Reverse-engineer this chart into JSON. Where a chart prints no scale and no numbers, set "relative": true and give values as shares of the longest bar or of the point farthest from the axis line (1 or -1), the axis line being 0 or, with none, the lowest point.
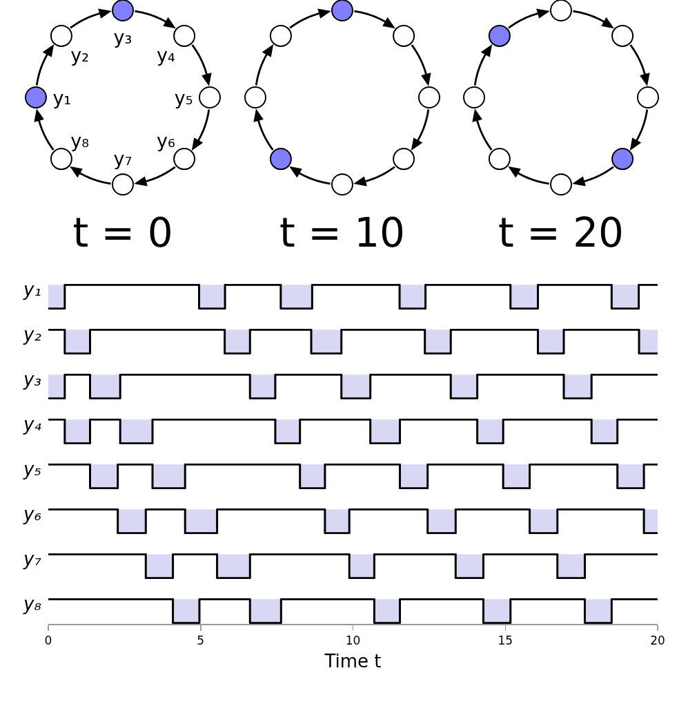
{
  "chart_data": [
    {
      "type": "other",
      "title": "t = 0",
      "categories": [
        "y₁",
        "y₂",
        "y₃",
        "y₄",
        "y₅",
        "y₆",
        "y₇",
        "y₈"
      ],
      "colors": [
        "#8080ff",
        "#ffffff",
        "#8080ff",
        "#ffffff",
        "#ffffff",
        "#ffffff",
        "#ffffff",
        "#ffffff"
      ]
    },
    {
      "type": "other",
      "title": "t = 10",
      "categories": [
        null,
        null,
        null,
        null,
        null,
        null,
        null,
        null
      ],
      "colors": [
        "#ffffff",
        "#ffffff",
        "#8080ff",
        "#ffffff",
        "#ffffff",
        "#ffffff",
        "#ffffff",
        "#8080ff"
      ]
    },
    {
      "type": "other",
      "title": "t = 20",
      "categories": [
        null,
        null,
        null,
        null,
        null,
        null,
        null,
        null
      ],
      "colors": [
        "#ffffff",
        "#8080ff",
        "#ffffff",
        "#ffffff",
        "#ffffff",
        "#8080ff",
        "#ffffff",
        "#ffffff"
      ]
    },
    {
      "type": "step",
      "ylabel": "y₁",
      "relative": true,
      "color": "#000000",
      "xlim": [
        0,
        20
      ],
      "tick_labels": false,
      "x": [
        0,
        0.54,
        4.95,
        5.8,
        7.63,
        8.66,
        11.53,
        12.38,
        15.17,
        16.07,
        18.49,
        19.38,
        20
      ],
      "values": [
        0,
        1,
        0,
        1,
        0,
        1,
        0,
        1,
        0,
        1,
        0,
        1,
        1
      ],
      "bands": [
        {
          "axis": "x",
          "from": 0,
          "to": 0.54,
          "color": "#d8d8f5"
        },
        {
          "axis": "x",
          "from": 4.95,
          "to": 5.8,
          "color": "#d8d8f5"
        },
        {
          "axis": "x",
          "from": 7.63,
          "to": 8.66,
          "color": "#d8d8f5"
        },
        {
          "axis": "x",
          "from": 11.53,
          "to": 12.38,
          "color": "#d8d8f5"
        },
        {
          "axis": "x",
          "from": 15.17,
          "to": 16.07,
          "color": "#d8d8f5"
        },
        {
          "axis": "x",
          "from": 18.49,
          "to": 19.38,
          "color": "#d8d8f5"
        }
      ]
    },
    {
      "type": "step",
      "ylabel": "y₂",
      "relative": true,
      "color": "#000000",
      "xlim": [
        0,
        20
      ],
      "tick_labels": false,
      "x": [
        0,
        0.54,
        1.37,
        5.79,
        6.62,
        8.63,
        9.62,
        12.36,
        13.21,
        16.07,
        16.92,
        19.39,
        20
      ],
      "values": [
        1,
        0,
        1,
        0,
        1,
        0,
        1,
        0,
        1,
        0,
        1,
        0,
        0
      ],
      "bands": [
        {
          "axis": "x",
          "from": 0.54,
          "to": 1.37,
          "color": "#d8d8f5"
        },
        {
          "axis": "x",
          "from": 5.79,
          "to": 6.62,
          "color": "#d8d8f5"
        },
        {
          "axis": "x",
          "from": 8.63,
          "to": 9.62,
          "color": "#d8d8f5"
        },
        {
          "axis": "x",
          "from": 12.36,
          "to": 13.21,
          "color": "#d8d8f5"
        },
        {
          "axis": "x",
          "from": 16.07,
          "to": 16.92,
          "color": "#d8d8f5"
        },
        {
          "axis": "x",
          "from": 19.39,
          "to": 20,
          "color": "#d8d8f5"
        }
      ]
    },
    {
      "type": "step",
      "ylabel": "y₃",
      "relative": true,
      "color": "#000000",
      "xlim": [
        0,
        20
      ],
      "tick_labels": false,
      "x": [
        0,
        0.54,
        1.37,
        2.36,
        6.62,
        7.45,
        9.62,
        10.57,
        13.21,
        14.08,
        16.92,
        17.83,
        20
      ],
      "values": [
        0,
        1,
        0,
        1,
        0,
        1,
        0,
        1,
        0,
        1,
        0,
        1,
        1
      ],
      "bands": [
        {
          "axis": "x",
          "from": 0,
          "to": 0.54,
          "color": "#d8d8f5"
        },
        {
          "axis": "x",
          "from": 1.37,
          "to": 2.36,
          "color": "#d8d8f5"
        },
        {
          "axis": "x",
          "from": 6.62,
          "to": 7.45,
          "color": "#d8d8f5"
        },
        {
          "axis": "x",
          "from": 9.62,
          "to": 10.57,
          "color": "#d8d8f5"
        },
        {
          "axis": "x",
          "from": 13.21,
          "to": 14.08,
          "color": "#d8d8f5"
        },
        {
          "axis": "x",
          "from": 16.92,
          "to": 17.83,
          "color": "#d8d8f5"
        }
      ]
    },
    {
      "type": "step",
      "ylabel": "y₄",
      "relative": true,
      "color": "#000000",
      "xlim": [
        0,
        20
      ],
      "tick_labels": false,
      "x": [
        0,
        0.54,
        1.37,
        2.36,
        3.42,
        7.45,
        8.26,
        10.57,
        11.54,
        14.08,
        14.93,
        17.83,
        18.68,
        20
      ],
      "values": [
        1,
        0,
        1,
        0,
        1,
        0,
        1,
        0,
        1,
        0,
        1,
        0,
        1,
        1
      ],
      "bands": [
        {
          "axis": "x",
          "from": 0.54,
          "to": 1.37,
          "color": "#d8d8f5"
        },
        {
          "axis": "x",
          "from": 2.36,
          "to": 3.42,
          "color": "#d8d8f5"
        },
        {
          "axis": "x",
          "from": 7.45,
          "to": 8.26,
          "color": "#d8d8f5"
        },
        {
          "axis": "x",
          "from": 10.57,
          "to": 11.54,
          "color": "#d8d8f5"
        },
        {
          "axis": "x",
          "from": 14.08,
          "to": 14.93,
          "color": "#d8d8f5"
        },
        {
          "axis": "x",
          "from": 17.83,
          "to": 18.68,
          "color": "#d8d8f5"
        }
      ]
    },
    {
      "type": "step",
      "ylabel": "y₅",
      "relative": true,
      "color": "#000000",
      "xlim": [
        0,
        20
      ],
      "tick_labels": false,
      "x": [
        0,
        1.37,
        2.28,
        3.42,
        4.49,
        8.26,
        9.08,
        11.54,
        12.45,
        14.93,
        15.8,
        18.68,
        19.55,
        20
      ],
      "values": [
        1,
        0,
        1,
        0,
        1,
        0,
        1,
        0,
        1,
        0,
        1,
        0,
        1,
        1
      ],
      "bands": [
        {
          "axis": "x",
          "from": 1.37,
          "to": 2.28,
          "color": "#d8d8f5"
        },
        {
          "axis": "x",
          "from": 3.42,
          "to": 4.49,
          "color": "#d8d8f5"
        },
        {
          "axis": "x",
          "from": 8.26,
          "to": 9.08,
          "color": "#d8d8f5"
        },
        {
          "axis": "x",
          "from": 11.54,
          "to": 12.45,
          "color": "#d8d8f5"
        },
        {
          "axis": "x",
          "from": 14.93,
          "to": 15.8,
          "color": "#d8d8f5"
        },
        {
          "axis": "x",
          "from": 18.68,
          "to": 19.55,
          "color": "#d8d8f5"
        }
      ]
    },
    {
      "type": "step",
      "ylabel": "y₆",
      "relative": true,
      "color": "#000000",
      "xlim": [
        0,
        20
      ],
      "tick_labels": false,
      "x": [
        0,
        2.28,
        3.2,
        4.49,
        5.54,
        9.08,
        9.88,
        12.45,
        13.37,
        15.8,
        16.71,
        19.55,
        20
      ],
      "values": [
        1,
        0,
        1,
        0,
        1,
        0,
        1,
        0,
        1,
        0,
        1,
        0,
        0
      ],
      "bands": [
        {
          "axis": "x",
          "from": 2.28,
          "to": 3.2,
          "color": "#d8d8f5"
        },
        {
          "axis": "x",
          "from": 4.49,
          "to": 5.54,
          "color": "#d8d8f5"
        },
        {
          "axis": "x",
          "from": 9.08,
          "to": 9.88,
          "color": "#d8d8f5"
        },
        {
          "axis": "x",
          "from": 12.45,
          "to": 13.37,
          "color": "#d8d8f5"
        },
        {
          "axis": "x",
          "from": 15.8,
          "to": 16.71,
          "color": "#d8d8f5"
        },
        {
          "axis": "x",
          "from": 19.55,
          "to": 20,
          "color": "#d8d8f5"
        }
      ]
    },
    {
      "type": "step",
      "ylabel": "y₇",
      "relative": true,
      "color": "#000000",
      "xlim": [
        0,
        20
      ],
      "tick_labels": false,
      "x": [
        0,
        3.2,
        4.09,
        5.54,
        6.62,
        9.88,
        10.7,
        13.37,
        14.28,
        16.71,
        17.61,
        20
      ],
      "values": [
        1,
        0,
        1,
        0,
        1,
        0,
        1,
        0,
        1,
        0,
        1,
        1
      ],
      "bands": [
        {
          "axis": "x",
          "from": 3.2,
          "to": 4.09,
          "color": "#d8d8f5"
        },
        {
          "axis": "x",
          "from": 5.54,
          "to": 6.62,
          "color": "#d8d8f5"
        },
        {
          "axis": "x",
          "from": 9.88,
          "to": 10.7,
          "color": "#d8d8f5"
        },
        {
          "axis": "x",
          "from": 13.37,
          "to": 14.28,
          "color": "#d8d8f5"
        },
        {
          "axis": "x",
          "from": 16.71,
          "to": 17.61,
          "color": "#d8d8f5"
        }
      ]
    },
    {
      "type": "step",
      "ylabel": "y₈",
      "relative": true,
      "color": "#000000",
      "xlim": [
        0,
        20
      ],
      "xticks": [
        0,
        5,
        10,
        15,
        20
      ],
      "xlabel": "Time t",
      "tick_labels": "x",
      "x": [
        0,
        4.09,
        4.96,
        6.62,
        7.64,
        10.7,
        11.54,
        14.28,
        15.17,
        17.61,
        18.49,
        20
      ],
      "values": [
        1,
        0,
        1,
        0,
        1,
        0,
        1,
        0,
        1,
        0,
        1,
        1
      ],
      "bands": [
        {
          "axis": "x",
          "from": 4.09,
          "to": 4.96,
          "color": "#d8d8f5"
        },
        {
          "axis": "x",
          "from": 6.62,
          "to": 7.64,
          "color": "#d8d8f5"
        },
        {
          "axis": "x",
          "from": 10.7,
          "to": 11.54,
          "color": "#d8d8f5"
        },
        {
          "axis": "x",
          "from": 14.28,
          "to": 15.17,
          "color": "#d8d8f5"
        },
        {
          "axis": "x",
          "from": 17.61,
          "to": 18.49,
          "color": "#d8d8f5"
        }
      ]
    }
  ]
}
